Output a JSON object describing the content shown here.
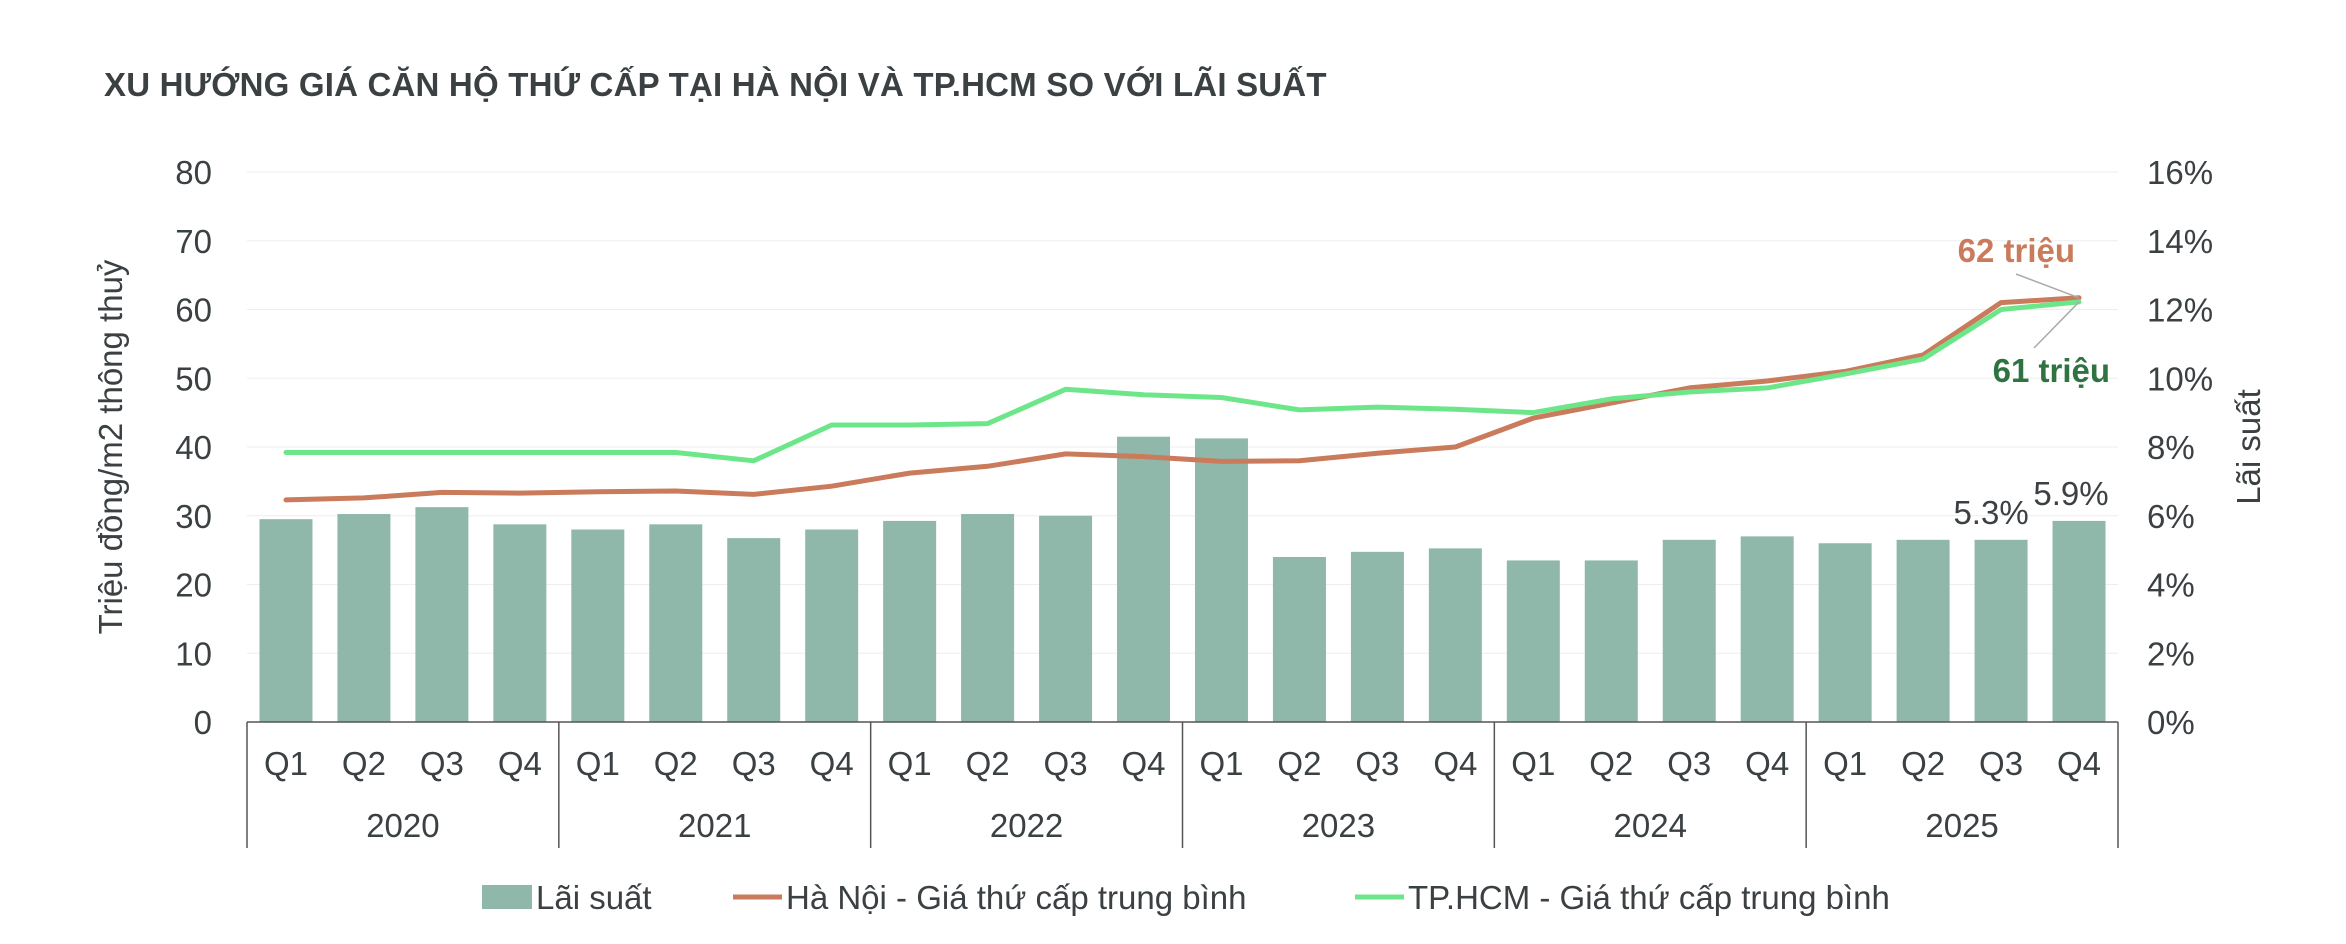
{
  "chart_data": {
    "type": "bar+line",
    "title": "XU HƯỚNG GIÁ CĂN HỘ THỨ CẤP TẠI HÀ NỘI VÀ TP.HCM SO VỚI LÃI SUẤT",
    "ylabel_left": "Triệu đồng/m2 thông thuỷ",
    "ylabel_right": "Lãi suất",
    "ylim_left": [
      0,
      80
    ],
    "ylim_right": [
      0,
      16
    ],
    "yticks_left": [
      "0",
      "10",
      "20",
      "30",
      "40",
      "50",
      "60",
      "70",
      "80"
    ],
    "yticks_right": [
      "0%",
      "2%",
      "4%",
      "6%",
      "8%",
      "10%",
      "12%",
      "14%",
      "16%"
    ],
    "categories": [
      "Q1",
      "Q2",
      "Q3",
      "Q4",
      "Q1",
      "Q2",
      "Q3",
      "Q4",
      "Q1",
      "Q2",
      "Q3",
      "Q4",
      "Q1",
      "Q2",
      "Q3",
      "Q4",
      "Q1",
      "Q2",
      "Q3",
      "Q4",
      "Q1",
      "Q2",
      "Q3",
      "Q4"
    ],
    "years": [
      "2020",
      "2021",
      "2022",
      "2023",
      "2024",
      "2025"
    ],
    "series": [
      {
        "name": "Lãi suất",
        "type": "bar",
        "axis": "right",
        "color": "#8fb8aa",
        "values": [
          5.9,
          6.05,
          6.25,
          5.75,
          5.6,
          5.75,
          5.35,
          5.6,
          5.85,
          6.05,
          6.0,
          8.3,
          8.25,
          4.8,
          4.95,
          5.05,
          4.7,
          4.7,
          5.3,
          5.4,
          5.2,
          5.3,
          5.3,
          5.85
        ]
      },
      {
        "name": "Hà Nội - Giá thứ cấp trung bình",
        "type": "line",
        "axis": "left",
        "color": "#c97b5b",
        "values": [
          32.3,
          32.6,
          33.4,
          33.3,
          33.5,
          33.6,
          33.1,
          34.3,
          36.2,
          37.2,
          39.0,
          38.6,
          37.9,
          38.0,
          39.1,
          40.0,
          44.2,
          46.4,
          48.6,
          49.6,
          51.0,
          53.4,
          61.0,
          61.7
        ]
      },
      {
        "name": "TP.HCM - Giá thứ cấp trung bình",
        "type": "line",
        "axis": "left",
        "color": "#6de68a",
        "values": [
          39.2,
          39.2,
          39.2,
          39.2,
          39.2,
          39.2,
          38.0,
          43.2,
          43.2,
          43.4,
          48.4,
          47.6,
          47.2,
          45.4,
          45.8,
          45.5,
          45.0,
          47.0,
          48.0,
          48.6,
          50.6,
          52.8,
          60.0,
          61.1
        ]
      }
    ],
    "annotations": {
      "bar_labels": [
        {
          "index": 22,
          "text": "5.3%"
        },
        {
          "index": 23,
          "text": "5.9%"
        }
      ],
      "hanoi_end": {
        "text": "62 triệu",
        "color": "#c97b5b"
      },
      "hcm_end": {
        "text": "61 triệu",
        "color": "#2f7340"
      }
    },
    "legend": [
      "Lãi suất",
      "Hà Nội - Giá thứ cấp trung bình",
      "TP.HCM - Giá thứ cấp trung bình"
    ],
    "legend_position": "bottom",
    "grid": true
  }
}
